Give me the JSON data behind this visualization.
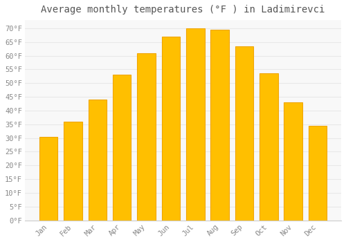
{
  "title": "Average monthly temperatures (°F ) in Ladimirevci",
  "months": [
    "Jan",
    "Feb",
    "Mar",
    "Apr",
    "May",
    "Jun",
    "Jul",
    "Aug",
    "Sep",
    "Oct",
    "Nov",
    "Dec"
  ],
  "values": [
    30.5,
    36,
    44,
    53,
    61,
    67,
    70,
    69.5,
    63.5,
    53.5,
    43,
    34.5
  ],
  "bar_color": "#FFBF00",
  "bar_edge_color": "#F0A500",
  "background_color": "#FFFFFF",
  "plot_bg_color": "#F8F8F8",
  "grid_color": "#E8E8E8",
  "text_color": "#888888",
  "yticks": [
    0,
    5,
    10,
    15,
    20,
    25,
    30,
    35,
    40,
    45,
    50,
    55,
    60,
    65,
    70
  ],
  "ylim": [
    0,
    73
  ],
  "title_fontsize": 10,
  "tick_fontsize": 7.5,
  "figwidth": 5.0,
  "figheight": 3.5,
  "dpi": 100
}
